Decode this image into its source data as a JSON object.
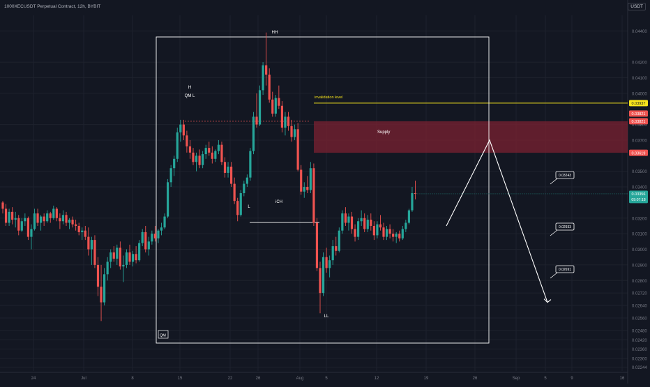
{
  "header": {
    "title": "1000XECUSDT Perpetual Contract, 12h, BYBIT",
    "currency": "USDT"
  },
  "colors": {
    "background": "#131722",
    "up": "#26a69a",
    "down": "#ef5350",
    "grid": "#1e222d",
    "supply_fill": "#7b2131",
    "invalidation": "#f7e41c",
    "annotation": "#ffffff",
    "axis_text": "#787b86"
  },
  "chart_data": {
    "type": "candlestick",
    "y_axis_position": "right",
    "ylim": [
      0.0222,
      0.045
    ],
    "yticks": [
      "0.04400",
      "0.04200",
      "0.04100",
      "0.04000",
      "0.03800",
      "0.03700",
      "0.03500",
      "0.03400",
      "0.03200",
      "0.03100",
      "0.03000",
      "0.02900",
      "0.02800",
      "0.02720",
      "0.02640",
      "0.02560",
      "0.02480",
      "0.02420",
      "0.02360",
      "0.02300",
      "0.02244"
    ],
    "xticks": [
      "24",
      "Jul",
      "8",
      "15",
      "22",
      "26",
      "Aug",
      "5",
      "12",
      "19",
      "26",
      "Sep",
      "5",
      "9",
      "16"
    ],
    "price_tags": [
      {
        "value": "0.03937",
        "color": "#f7e41c",
        "text_color": "#131722"
      },
      {
        "value": "0.03821",
        "color": "#ef5350",
        "text_color": "#ffffff"
      },
      {
        "value": "0.03821",
        "color": "#ef5350",
        "text_color": "#ffffff"
      },
      {
        "value": "0.03619",
        "color": "#ef5350",
        "text_color": "#ffffff"
      }
    ],
    "last_price": {
      "value": "0.03356",
      "countdown": "09:07:18",
      "color": "#26a69a"
    },
    "annotations": {
      "HH": "HH",
      "H": "H",
      "QML": "QM L",
      "L": "L",
      "ICH": "iCH",
      "LL": "LL",
      "QM": "QM",
      "invalidation": "invalidation level",
      "supply": "Supply"
    },
    "targets": [
      "0.03243",
      "0.02933",
      "0.02691"
    ],
    "levels": {
      "invalidation": 0.03937,
      "supply_top": 0.03821,
      "supply_bottom": 0.03619,
      "qml": 0.03821,
      "ich": 0.03172
    },
    "projection": [
      {
        "i": 133,
        "p": 0.0315
      },
      {
        "i": 148,
        "p": 0.037
      },
      {
        "i": 165,
        "p": 0.0266
      }
    ],
    "candles": [
      [
        0.033,
        0.0331,
        0.0323,
        0.0326
      ],
      [
        0.0326,
        0.0329,
        0.0315,
        0.0317
      ],
      [
        0.0317,
        0.0326,
        0.0315,
        0.0324
      ],
      [
        0.0324,
        0.0327,
        0.0316,
        0.0319
      ],
      [
        0.0319,
        0.0324,
        0.0314,
        0.032
      ],
      [
        0.032,
        0.0322,
        0.0309,
        0.0312
      ],
      [
        0.0312,
        0.032,
        0.0311,
        0.0318
      ],
      [
        0.0318,
        0.0323,
        0.0315,
        0.032
      ],
      [
        0.032,
        0.0321,
        0.0306,
        0.0308
      ],
      [
        0.0308,
        0.0316,
        0.03,
        0.0313
      ],
      [
        0.0313,
        0.0326,
        0.0312,
        0.0323
      ],
      [
        0.0323,
        0.0326,
        0.0315,
        0.0317
      ],
      [
        0.0317,
        0.0322,
        0.0312,
        0.0321
      ],
      [
        0.0321,
        0.0323,
        0.0315,
        0.0318
      ],
      [
        0.0318,
        0.0325,
        0.0317,
        0.0323
      ],
      [
        0.0323,
        0.0324,
        0.0317,
        0.032
      ],
      [
        0.032,
        0.0328,
        0.0319,
        0.0326
      ],
      [
        0.0326,
        0.0327,
        0.0318,
        0.032
      ],
      [
        0.032,
        0.0323,
        0.0313,
        0.0318
      ],
      [
        0.0318,
        0.0325,
        0.0316,
        0.0322
      ],
      [
        0.0322,
        0.0324,
        0.0315,
        0.0317
      ],
      [
        0.0317,
        0.032,
        0.0313,
        0.0319
      ],
      [
        0.0319,
        0.0321,
        0.0314,
        0.0316
      ],
      [
        0.0316,
        0.0319,
        0.0312,
        0.0315
      ],
      [
        0.0315,
        0.0317,
        0.0309,
        0.0311
      ],
      [
        0.0311,
        0.0314,
        0.0306,
        0.0312
      ],
      [
        0.0312,
        0.0315,
        0.0306,
        0.0308
      ],
      [
        0.0308,
        0.0314,
        0.0296,
        0.03
      ],
      [
        0.03,
        0.0308,
        0.029,
        0.0306
      ],
      [
        0.0306,
        0.0309,
        0.0288,
        0.029
      ],
      [
        0.029,
        0.0295,
        0.027,
        0.0276
      ],
      [
        0.0276,
        0.029,
        0.0254,
        0.0266
      ],
      [
        0.0266,
        0.0288,
        0.0264,
        0.0284
      ],
      [
        0.0284,
        0.0295,
        0.028,
        0.0292
      ],
      [
        0.0292,
        0.03,
        0.0288,
        0.0298
      ],
      [
        0.0298,
        0.0302,
        0.0292,
        0.0294
      ],
      [
        0.0294,
        0.0303,
        0.029,
        0.0301
      ],
      [
        0.0301,
        0.0305,
        0.0287,
        0.0289
      ],
      [
        0.0289,
        0.0296,
        0.0279,
        0.029
      ],
      [
        0.029,
        0.03,
        0.0288,
        0.0298
      ],
      [
        0.0298,
        0.0303,
        0.029,
        0.0292
      ],
      [
        0.0292,
        0.0299,
        0.0289,
        0.0297
      ],
      [
        0.0297,
        0.0302,
        0.0291,
        0.0293
      ],
      [
        0.0293,
        0.0306,
        0.0292,
        0.0304
      ],
      [
        0.0304,
        0.0313,
        0.0302,
        0.0311
      ],
      [
        0.0311,
        0.0315,
        0.0298,
        0.03
      ],
      [
        0.03,
        0.0308,
        0.0296,
        0.0305
      ],
      [
        0.0305,
        0.0312,
        0.0303,
        0.031
      ],
      [
        0.031,
        0.0315,
        0.0305,
        0.0307
      ],
      [
        0.0307,
        0.0313,
        0.0304,
        0.0312
      ],
      [
        0.0312,
        0.0317,
        0.0309,
        0.0314
      ],
      [
        0.0314,
        0.0323,
        0.0313,
        0.0321
      ],
      [
        0.0321,
        0.0345,
        0.032,
        0.0343
      ],
      [
        0.0343,
        0.0354,
        0.034,
        0.0352
      ],
      [
        0.0352,
        0.036,
        0.0347,
        0.0358
      ],
      [
        0.0358,
        0.0378,
        0.0356,
        0.0375
      ],
      [
        0.0375,
        0.0383,
        0.0369,
        0.038
      ],
      [
        0.038,
        0.0383,
        0.037,
        0.0373
      ],
      [
        0.0373,
        0.0376,
        0.0362,
        0.0366
      ],
      [
        0.0366,
        0.037,
        0.0358,
        0.0362
      ],
      [
        0.0362,
        0.0365,
        0.0354,
        0.0356
      ],
      [
        0.0356,
        0.0362,
        0.035,
        0.036
      ],
      [
        0.036,
        0.0364,
        0.0352,
        0.0354
      ],
      [
        0.0354,
        0.0363,
        0.0352,
        0.0361
      ],
      [
        0.0361,
        0.0367,
        0.0358,
        0.0365
      ],
      [
        0.0365,
        0.0369,
        0.036,
        0.0362
      ],
      [
        0.0362,
        0.0366,
        0.0355,
        0.0358
      ],
      [
        0.0358,
        0.0364,
        0.0356,
        0.0363
      ],
      [
        0.0363,
        0.037,
        0.0361,
        0.0367
      ],
      [
        0.0367,
        0.0369,
        0.0354,
        0.0356
      ],
      [
        0.0356,
        0.0359,
        0.0346,
        0.0349
      ],
      [
        0.0349,
        0.0356,
        0.0346,
        0.0353
      ],
      [
        0.0353,
        0.0356,
        0.034,
        0.0342
      ],
      [
        0.0342,
        0.0346,
        0.0329,
        0.0331
      ],
      [
        0.0331,
        0.0333,
        0.0318,
        0.0322
      ],
      [
        0.0322,
        0.0338,
        0.0321,
        0.0336
      ],
      [
        0.0336,
        0.0344,
        0.0334,
        0.0342
      ],
      [
        0.0342,
        0.0348,
        0.034,
        0.0346
      ],
      [
        0.0346,
        0.0365,
        0.0344,
        0.0363
      ],
      [
        0.0363,
        0.0388,
        0.0361,
        0.0385
      ],
      [
        0.0385,
        0.04,
        0.0378,
        0.038
      ],
      [
        0.038,
        0.0405,
        0.0379,
        0.0402
      ],
      [
        0.0402,
        0.042,
        0.0399,
        0.0418
      ],
      [
        0.0418,
        0.0439,
        0.0405,
        0.0412
      ],
      [
        0.0412,
        0.0416,
        0.0394,
        0.0396
      ],
      [
        0.0396,
        0.0401,
        0.0385,
        0.0387
      ],
      [
        0.0387,
        0.0399,
        0.0385,
        0.0397
      ],
      [
        0.0397,
        0.0405,
        0.039,
        0.0392
      ],
      [
        0.0392,
        0.0395,
        0.0375,
        0.0378
      ],
      [
        0.0378,
        0.0388,
        0.0373,
        0.0385
      ],
      [
        0.0385,
        0.0388,
        0.0376,
        0.0379
      ],
      [
        0.0379,
        0.0383,
        0.0369,
        0.0372
      ],
      [
        0.0372,
        0.038,
        0.037,
        0.0377
      ],
      [
        0.0377,
        0.0381,
        0.035,
        0.0351
      ],
      [
        0.0351,
        0.0354,
        0.0335,
        0.0337
      ],
      [
        0.0337,
        0.0343,
        0.0333,
        0.034
      ],
      [
        0.034,
        0.0347,
        0.0336,
        0.0338
      ],
      [
        0.0338,
        0.0356,
        0.0336,
        0.0352
      ],
      [
        0.0352,
        0.0355,
        0.0315,
        0.0317
      ],
      [
        0.0317,
        0.032,
        0.0286,
        0.0288
      ],
      [
        0.0288,
        0.0292,
        0.0259,
        0.0272
      ],
      [
        0.0272,
        0.0298,
        0.027,
        0.0295
      ],
      [
        0.0295,
        0.0301,
        0.0285,
        0.0288
      ],
      [
        0.0288,
        0.0296,
        0.0282,
        0.0293
      ],
      [
        0.0293,
        0.0306,
        0.029,
        0.0302
      ],
      [
        0.0302,
        0.0308,
        0.0296,
        0.0299
      ],
      [
        0.0299,
        0.0314,
        0.0298,
        0.0312
      ],
      [
        0.0312,
        0.0325,
        0.031,
        0.0323
      ],
      [
        0.0323,
        0.0327,
        0.0315,
        0.0317
      ],
      [
        0.0317,
        0.0323,
        0.0312,
        0.0321
      ],
      [
        0.0321,
        0.0324,
        0.031,
        0.0313
      ],
      [
        0.0313,
        0.0316,
        0.0305,
        0.0308
      ],
      [
        0.0308,
        0.032,
        0.0306,
        0.0318
      ],
      [
        0.0318,
        0.0325,
        0.0315,
        0.032
      ],
      [
        0.032,
        0.0323,
        0.0311,
        0.0313
      ],
      [
        0.0313,
        0.0322,
        0.0311,
        0.0319
      ],
      [
        0.0319,
        0.0323,
        0.0312,
        0.0315
      ],
      [
        0.0315,
        0.0318,
        0.0306,
        0.0309
      ],
      [
        0.0309,
        0.0318,
        0.0307,
        0.0316
      ],
      [
        0.0316,
        0.0322,
        0.0312,
        0.0314
      ],
      [
        0.0314,
        0.0317,
        0.0306,
        0.0308
      ],
      [
        0.0308,
        0.0315,
        0.0306,
        0.0313
      ],
      [
        0.0313,
        0.0316,
        0.0307,
        0.031
      ],
      [
        0.031,
        0.0313,
        0.0305,
        0.0308
      ],
      [
        0.0308,
        0.0311,
        0.0304,
        0.031
      ],
      [
        0.031,
        0.0312,
        0.0305,
        0.0307
      ],
      [
        0.0307,
        0.0315,
        0.0306,
        0.0313
      ],
      [
        0.0313,
        0.0319,
        0.0311,
        0.0317
      ],
      [
        0.0317,
        0.0326,
        0.0316,
        0.0325
      ],
      [
        0.0325,
        0.034,
        0.0324,
        0.0336
      ],
      [
        0.0336,
        0.0344,
        0.0332,
        0.03356
      ]
    ]
  }
}
